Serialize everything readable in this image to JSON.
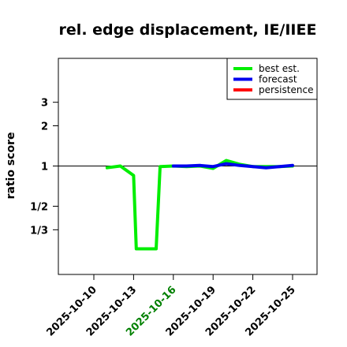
{
  "chart_data": {
    "type": "line",
    "title": "rel. edge displacement, IE/IIEE",
    "xlabel": "",
    "ylabel": "ratio score",
    "y_scale": "log",
    "y_ticks": [
      {
        "value": 0.3333,
        "label": "1/3"
      },
      {
        "value": 0.5,
        "label": "1/2"
      },
      {
        "value": 1,
        "label": "1"
      },
      {
        "value": 2,
        "label": "2"
      },
      {
        "value": 3,
        "label": "3"
      }
    ],
    "x_ticks": [
      {
        "label": "2025-10-10",
        "color": "#000000"
      },
      {
        "label": "2025-10-13",
        "color": "#000000"
      },
      {
        "label": "2025-10-16",
        "color": "#008000"
      },
      {
        "label": "2025-10-19",
        "color": "#000000"
      },
      {
        "label": "2025-10-22",
        "color": "#000000"
      },
      {
        "label": "2025-10-25",
        "color": "#000000"
      }
    ],
    "reference_line": 1,
    "legend_position": "top-right",
    "series": [
      {
        "name": "best est.",
        "color": "#00ee00",
        "points": [
          {
            "x": "2025-10-11",
            "y": 0.97
          },
          {
            "x": "2025-10-12",
            "y": 1.0
          },
          {
            "x": "2025-10-13",
            "y": 0.85
          },
          {
            "x": "2025-10-13.2",
            "y": 0.24
          },
          {
            "x": "2025-10-14.7",
            "y": 0.24
          },
          {
            "x": "2025-10-15",
            "y": 0.99
          },
          {
            "x": "2025-10-16",
            "y": 1.0
          },
          {
            "x": "2025-10-17",
            "y": 0.99
          },
          {
            "x": "2025-10-18",
            "y": 1.0
          },
          {
            "x": "2025-10-19",
            "y": 0.96
          },
          {
            "x": "2025-10-20",
            "y": 1.1
          },
          {
            "x": "2025-10-21",
            "y": 1.03
          },
          {
            "x": "2025-10-22",
            "y": 0.99
          },
          {
            "x": "2025-10-23",
            "y": 0.99
          },
          {
            "x": "2025-10-24",
            "y": 0.99
          },
          {
            "x": "2025-10-25",
            "y": 1.0
          }
        ]
      },
      {
        "name": "forecast",
        "color": "#0000ee",
        "points": [
          {
            "x": "2025-10-16",
            "y": 1.0
          },
          {
            "x": "2025-10-17",
            "y": 1.0
          },
          {
            "x": "2025-10-18",
            "y": 1.01
          },
          {
            "x": "2025-10-19",
            "y": 0.99
          },
          {
            "x": "2025-10-20",
            "y": 1.04
          },
          {
            "x": "2025-10-21",
            "y": 1.01
          },
          {
            "x": "2025-10-22",
            "y": 0.99
          },
          {
            "x": "2025-10-23",
            "y": 0.97
          },
          {
            "x": "2025-10-24",
            "y": 0.99
          },
          {
            "x": "2025-10-25",
            "y": 1.01
          }
        ]
      },
      {
        "name": "persistence",
        "color": "#ff0000",
        "points": []
      }
    ]
  }
}
